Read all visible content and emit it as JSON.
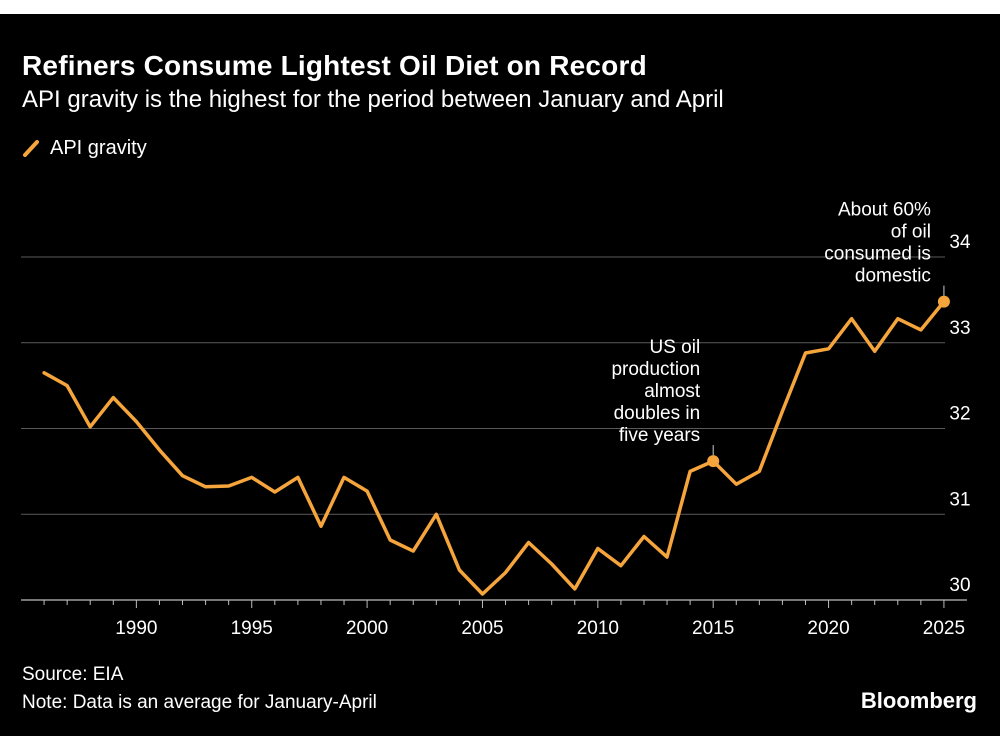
{
  "header": {
    "title": "Refiners Consume Lightest Oil Diet on Record",
    "subtitle": "API gravity is the highest for the period between January and April"
  },
  "footer": {
    "source": "Source: EIA",
    "note": "Note: Data is an average for January-April",
    "brand": "Bloomberg"
  },
  "colors": {
    "background": "#000000",
    "series": "#f5a53b",
    "grid": "#5a5a5a",
    "text": "#ffffff"
  },
  "chart_data": {
    "type": "line",
    "title": "Refiners Consume Lightest Oil Diet on Record",
    "subtitle": "API gravity is the highest for the period between January and April",
    "xlabel": "",
    "ylabel": "",
    "xlim": [
      1986,
      2025
    ],
    "ylim": [
      30,
      34
    ],
    "x_ticks": [
      1990,
      1995,
      2000,
      2005,
      2010,
      2015,
      2020,
      2025
    ],
    "x_tick_labels": [
      "1990",
      "1995",
      "2000",
      "2005",
      "2010",
      "2015",
      "2020",
      "2025"
    ],
    "y_ticks": [
      30,
      31,
      32,
      33,
      34
    ],
    "y_tick_labels": [
      "30",
      "31",
      "32",
      "33",
      "34"
    ],
    "y_axis_position": "right",
    "grid": "horizontal",
    "legend": {
      "position": "top-left",
      "entries": [
        "API gravity"
      ]
    },
    "series": [
      {
        "name": "API gravity",
        "x": [
          1986,
          1987,
          1988,
          1989,
          1990,
          1991,
          1992,
          1993,
          1994,
          1995,
          1996,
          1997,
          1998,
          1999,
          2000,
          2001,
          2002,
          2003,
          2004,
          2005,
          2006,
          2007,
          2008,
          2009,
          2010,
          2011,
          2012,
          2013,
          2014,
          2015,
          2016,
          2017,
          2018,
          2019,
          2020,
          2021,
          2022,
          2023,
          2024,
          2025
        ],
        "y": [
          32.65,
          32.5,
          32.02,
          32.36,
          32.08,
          31.75,
          31.45,
          31.32,
          31.33,
          31.43,
          31.26,
          31.43,
          30.86,
          31.43,
          31.27,
          30.7,
          30.57,
          31.0,
          30.35,
          30.07,
          30.32,
          30.67,
          30.42,
          30.13,
          30.6,
          30.4,
          30.74,
          30.5,
          31.5,
          31.62,
          31.35,
          31.5,
          32.2,
          32.88,
          32.93,
          33.28,
          32.9,
          33.28,
          33.15,
          33.48
        ]
      }
    ],
    "annotations": [
      {
        "x": 2015,
        "y": 31.62,
        "lines": [
          "US oil",
          "production",
          "almost",
          "doubles in",
          "five years"
        ]
      },
      {
        "x": 2025,
        "y": 33.48,
        "lines": [
          "About 60%",
          "of oil",
          "consumed is",
          "domestic"
        ]
      }
    ]
  }
}
